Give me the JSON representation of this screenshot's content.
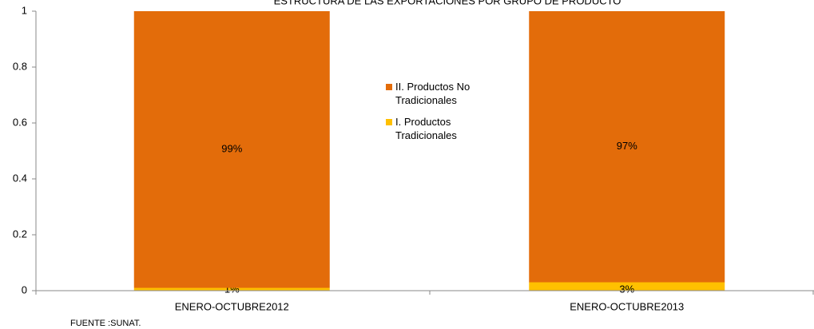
{
  "chart_data": {
    "type": "stacked_bar",
    "title": "ESTRUCTURA DE LAS EXPORTACIONES POR GRUPO DE PRODUCTO",
    "categories": [
      "ENERO-OCTUBRE2012",
      "ENERO-OCTUBRE2013"
    ],
    "series": [
      {
        "name": "I. Productos Tradicionales",
        "color": "#ffc000",
        "values": [
          0.01,
          0.03
        ],
        "value_labels": [
          "1%",
          "3%"
        ]
      },
      {
        "name": "II. Productos No Tradicionales",
        "color": "#e36c0a",
        "values": [
          0.99,
          0.97
        ],
        "value_labels": [
          "99%",
          "97%"
        ]
      }
    ],
    "ylim": [
      0,
      1
    ],
    "yticks": [
      0,
      0.2,
      0.4,
      0.6,
      0.8,
      1
    ],
    "source": "FUENTE :SUNAT."
  }
}
